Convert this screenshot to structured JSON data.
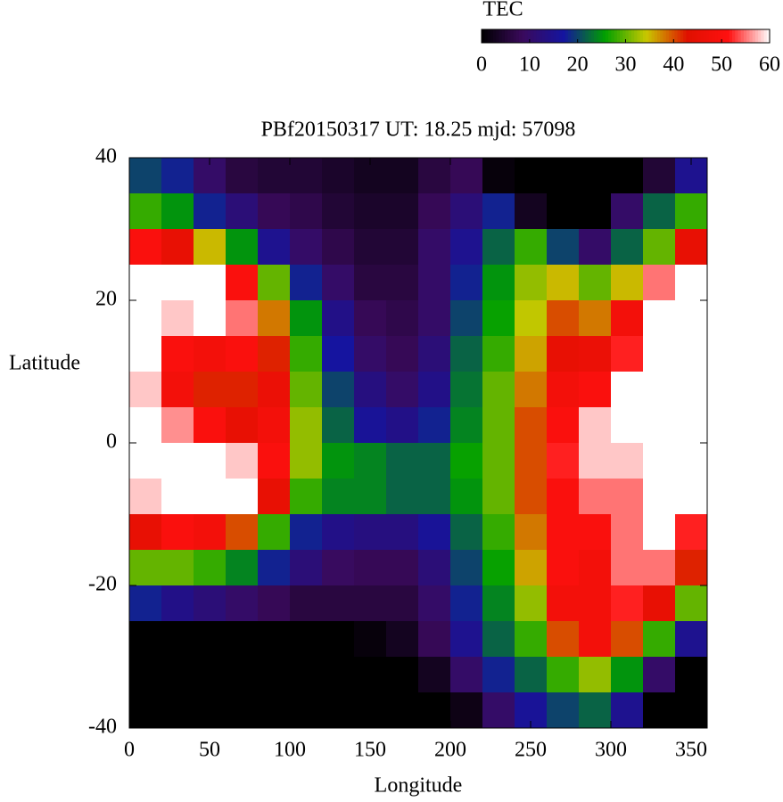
{
  "chart_data": {
    "type": "heatmap",
    "title": "PBf20150317  UT: 18.25  mjd: 57098",
    "xlabel": "Longitude",
    "ylabel": "Latitude",
    "xlim": [
      0,
      360
    ],
    "ylim": [
      -40,
      40
    ],
    "xticks": [
      0,
      50,
      100,
      150,
      200,
      250,
      300,
      350
    ],
    "yticks": [
      -40,
      -20,
      0,
      20,
      40
    ],
    "x": [
      10,
      30,
      50,
      70,
      90,
      110,
      130,
      150,
      170,
      190,
      210,
      230,
      250,
      270,
      290,
      310,
      330,
      350
    ],
    "y": [
      37.5,
      32.5,
      27.5,
      22.5,
      17.5,
      12.5,
      7.5,
      2.5,
      -2.5,
      -7.5,
      -12.5,
      -17.5,
      -22.5,
      -27.5,
      -32.5,
      -37.5
    ],
    "values": [
      [
        20,
        18,
        10,
        6,
        5,
        5,
        4,
        3,
        3,
        6,
        8,
        1,
        0,
        0,
        0,
        0,
        5,
        15
      ],
      [
        28,
        25,
        18,
        12,
        8,
        7,
        5,
        4,
        4,
        8,
        12,
        18,
        3,
        0,
        0,
        10,
        22,
        28
      ],
      [
        50,
        45,
        35,
        25,
        15,
        10,
        7,
        5,
        5,
        10,
        15,
        22,
        28,
        20,
        10,
        22,
        30,
        45
      ],
      [
        60,
        60,
        60,
        50,
        30,
        18,
        10,
        6,
        6,
        10,
        18,
        25,
        32,
        35,
        30,
        35,
        55,
        60
      ],
      [
        60,
        58,
        60,
        55,
        38,
        25,
        14,
        8,
        7,
        10,
        20,
        26,
        34,
        40,
        38,
        48,
        60,
        60
      ],
      [
        60,
        50,
        48,
        50,
        42,
        28,
        17,
        10,
        8,
        12,
        22,
        28,
        36,
        45,
        46,
        52,
        60,
        60
      ],
      [
        58,
        48,
        42,
        42,
        46,
        30,
        20,
        13,
        10,
        14,
        23,
        30,
        38,
        48,
        50,
        60,
        60,
        60
      ],
      [
        60,
        56,
        50,
        45,
        48,
        32,
        22,
        16,
        14,
        18,
        24,
        30,
        40,
        50,
        58,
        60,
        60,
        60
      ],
      [
        60,
        60,
        60,
        58,
        50,
        32,
        25,
        24,
        22,
        22,
        26,
        30,
        40,
        52,
        58,
        58,
        60,
        60
      ],
      [
        58,
        60,
        60,
        60,
        45,
        28,
        24,
        24,
        22,
        22,
        25,
        30,
        40,
        50,
        55,
        55,
        60,
        60
      ],
      [
        45,
        50,
        48,
        40,
        28,
        18,
        14,
        13,
        13,
        16,
        22,
        28,
        38,
        50,
        50,
        55,
        60,
        52
      ],
      [
        30,
        30,
        28,
        24,
        18,
        12,
        9,
        8,
        8,
        12,
        20,
        26,
        36,
        50,
        48,
        55,
        55,
        42
      ],
      [
        18,
        14,
        12,
        10,
        8,
        6,
        6,
        6,
        6,
        10,
        18,
        24,
        32,
        48,
        48,
        52,
        45,
        30
      ],
      [
        0,
        0,
        0,
        0,
        0,
        0,
        0,
        1,
        3,
        8,
        15,
        22,
        28,
        40,
        48,
        40,
        28,
        15
      ],
      [
        0,
        0,
        0,
        0,
        0,
        0,
        0,
        0,
        0,
        3,
        10,
        18,
        22,
        28,
        32,
        25,
        10,
        0
      ],
      [
        0,
        0,
        0,
        0,
        0,
        0,
        0,
        0,
        0,
        0,
        2,
        10,
        16,
        20,
        22,
        15,
        0,
        0
      ]
    ],
    "colorbar_label": "TEC",
    "clim": [
      0,
      60
    ],
    "cticks": [
      0,
      10,
      20,
      30,
      40,
      50,
      60
    ],
    "colormap": [
      "#000000",
      "#3a0a5c",
      "#1414a0",
      "#00a000",
      "#c8c800",
      "#e01000",
      "#ff1010",
      "#ffffff"
    ]
  }
}
